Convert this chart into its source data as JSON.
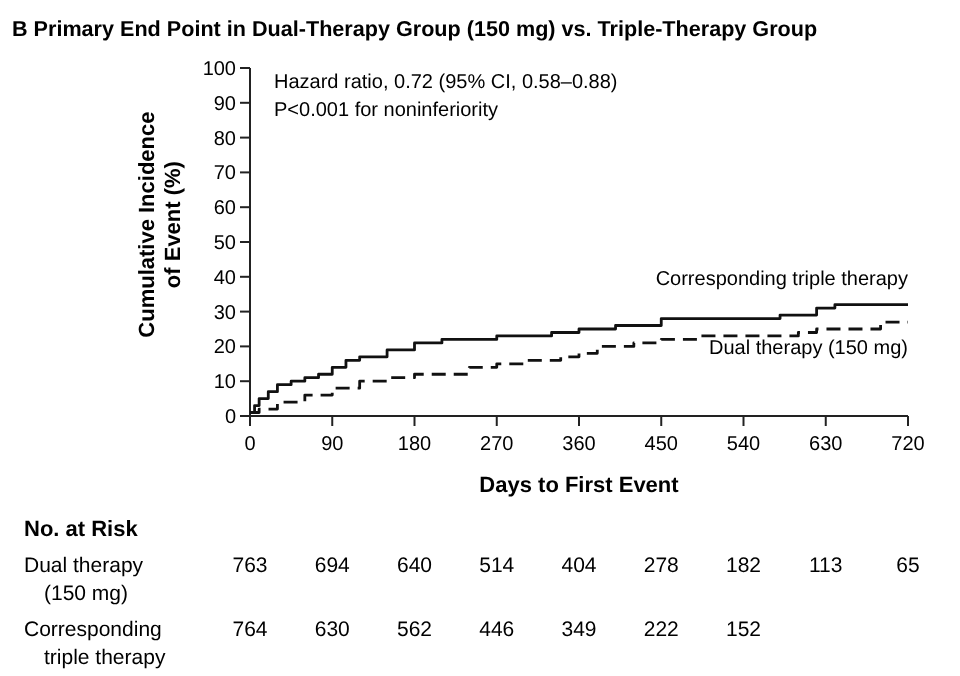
{
  "chart_data": {
    "type": "step",
    "title": "B  Primary End Point in Dual-Therapy Group (150 mg) vs. Triple-Therapy Group",
    "xlabel": "Days to First Event",
    "ylabel": "Cumulative Incidence of Event (%)",
    "xlim": [
      0,
      720
    ],
    "xticks": [
      0,
      90,
      180,
      270,
      360,
      450,
      540,
      630,
      720
    ],
    "ylim": [
      0,
      100
    ],
    "yticks": [
      0,
      10,
      20,
      30,
      40,
      50,
      60,
      70,
      80,
      90,
      100
    ],
    "series": [
      {
        "name": "Corresponding triple therapy",
        "color": "#111111",
        "line_style": "solid",
        "x": [
          0,
          5,
          10,
          20,
          30,
          45,
          60,
          75,
          90,
          105,
          120,
          150,
          180,
          210,
          270,
          330,
          360,
          400,
          450,
          540,
          580,
          620,
          640,
          720
        ],
        "values": [
          1,
          3,
          5,
          7,
          9,
          10,
          11,
          12,
          14,
          16,
          17,
          19,
          21,
          22,
          23,
          24,
          25,
          26,
          28,
          28,
          29,
          31,
          32,
          32
        ]
      },
      {
        "name": "Dual therapy (150 mg)",
        "color": "#111111",
        "line_style": "dashed",
        "x": [
          0,
          10,
          30,
          60,
          90,
          120,
          150,
          180,
          240,
          270,
          300,
          340,
          360,
          380,
          420,
          450,
          480,
          490,
          600,
          620,
          680,
          690,
          720
        ],
        "values": [
          1,
          2,
          4,
          6,
          8,
          10,
          11,
          12,
          14,
          15,
          16,
          17,
          18,
          20,
          21,
          22,
          22,
          23,
          24,
          25,
          25,
          27,
          27
        ]
      }
    ],
    "annotations": [
      "Hazard ratio, 0.72 (95% CI, 0.58–0.88)",
      "P<0.001 for noninferiority",
      "No. at Risk",
      "Dual therapy (150 mg)",
      "763",
      "694",
      "640",
      "514",
      "404",
      "278",
      "182",
      "113",
      "65",
      "Corresponding triple therapy",
      "764",
      "630",
      "562",
      "446",
      "349",
      "222",
      "152"
    ]
  }
}
